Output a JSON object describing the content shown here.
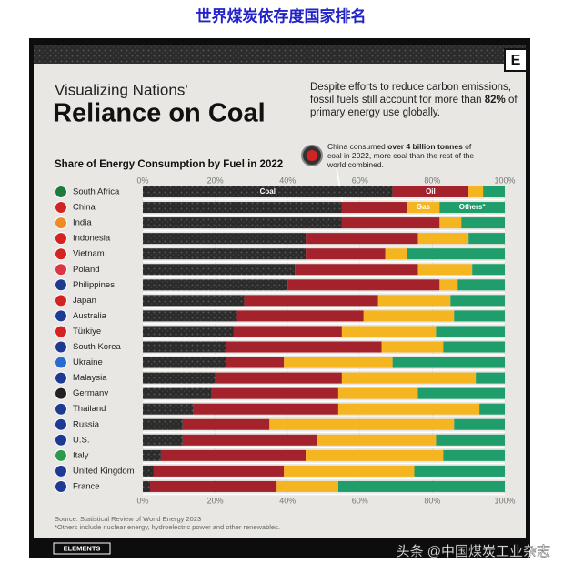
{
  "header": {
    "top_title": "世界煤炭依存度国家排名",
    "watermark": "头条 @中国煤炭工业杂志"
  },
  "chart_data": {
    "type": "stacked_bar",
    "orientation": "horizontal",
    "kicker": "Visualizing Nations'",
    "title": "Reliance on Coal",
    "description": [
      "Despite efforts to reduce carbon emissions, fossil fuels still account for more than ",
      "82%",
      " of primary energy use globally."
    ],
    "annotation": [
      "China consumed ",
      "over 4 billion tonnes",
      " of coal in 2022, more coal than the rest of the world combined."
    ],
    "subtitle": "Share of Energy Consumption by Fuel in 2022",
    "categories": [
      "South Africa",
      "China",
      "India",
      "Indonesia",
      "Vietnam",
      "Poland",
      "Philippines",
      "Japan",
      "Australia",
      "Türkiye",
      "South Korea",
      "Ukraine",
      "Malaysia",
      "Germany",
      "Thailand",
      "Russia",
      "U.S.",
      "Italy",
      "United Kingdom",
      "France"
    ],
    "series": [
      {
        "name": "Coal",
        "color": "#2b2b2b",
        "values": [
          69,
          55,
          55,
          45,
          45,
          42,
          40,
          28,
          26,
          25,
          23,
          23,
          20,
          19,
          14,
          11,
          11,
          5,
          3,
          2
        ]
      },
      {
        "name": "Oil",
        "color": "#a3222b",
        "values": [
          21,
          18,
          27,
          31,
          22,
          34,
          42,
          37,
          35,
          30,
          43,
          16,
          35,
          35,
          40,
          24,
          37,
          40,
          36,
          35
        ]
      },
      {
        "name": "Gas",
        "color": "#f5b521",
        "values": [
          4,
          9,
          6,
          14,
          6,
          15,
          5,
          20,
          25,
          26,
          17,
          30,
          37,
          22,
          39,
          51,
          33,
          38,
          36,
          17
        ]
      },
      {
        "name": "Others*",
        "color": "#1f9d6b",
        "values": [
          6,
          18,
          12,
          10,
          27,
          9,
          13,
          15,
          14,
          19,
          17,
          31,
          8,
          24,
          7,
          14,
          19,
          17,
          25,
          46
        ]
      }
    ],
    "xlim": [
      0,
      100
    ],
    "xticks": [
      {
        "value": 0,
        "label": "0%"
      },
      {
        "value": 20,
        "label": "20%"
      },
      {
        "value": 40,
        "label": "40%"
      },
      {
        "value": 60,
        "label": "60%"
      },
      {
        "value": 80,
        "label": "80%"
      },
      {
        "value": 100,
        "label": "100%"
      }
    ],
    "grid": true,
    "source": "Source: Statistical Review of World Energy 2023",
    "note": "*Others include nuclear energy, hydroelectric power and other renewables.",
    "brand": "ELEMENTS",
    "logo": "E"
  }
}
